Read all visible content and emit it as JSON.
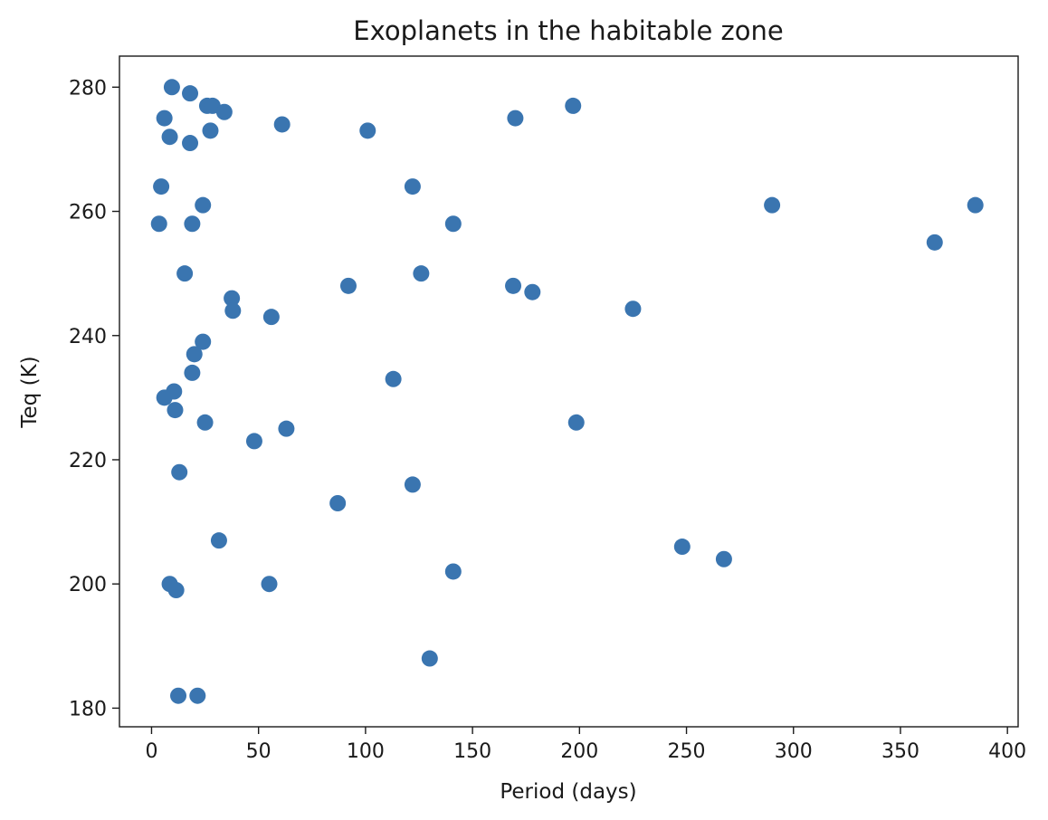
{
  "chart_data": {
    "type": "scatter",
    "title": "Exoplanets in the habitable zone",
    "xlabel": "Period (days)",
    "ylabel": "Teq (K)",
    "xlim": [
      -15,
      405
    ],
    "ylim": [
      177,
      285
    ],
    "xticks": [
      0,
      50,
      100,
      150,
      200,
      250,
      300,
      350,
      400
    ],
    "yticks": [
      180,
      200,
      220,
      240,
      260,
      280
    ],
    "marker_color": "#3a75b0",
    "grid": false,
    "legend": "none",
    "points": [
      {
        "x": 9.5,
        "y": 280
      },
      {
        "x": 18,
        "y": 279
      },
      {
        "x": 26,
        "y": 277
      },
      {
        "x": 28.5,
        "y": 277
      },
      {
        "x": 34,
        "y": 276
      },
      {
        "x": 6,
        "y": 275
      },
      {
        "x": 8.5,
        "y": 272
      },
      {
        "x": 18,
        "y": 271
      },
      {
        "x": 27.5,
        "y": 273
      },
      {
        "x": 61,
        "y": 274
      },
      {
        "x": 101,
        "y": 273
      },
      {
        "x": 170,
        "y": 275
      },
      {
        "x": 197,
        "y": 277
      },
      {
        "x": 4.5,
        "y": 264
      },
      {
        "x": 122,
        "y": 264
      },
      {
        "x": 3.5,
        "y": 258
      },
      {
        "x": 19,
        "y": 258
      },
      {
        "x": 24,
        "y": 261
      },
      {
        "x": 141,
        "y": 258
      },
      {
        "x": 290,
        "y": 261
      },
      {
        "x": 385,
        "y": 261
      },
      {
        "x": 366,
        "y": 255
      },
      {
        "x": 15.5,
        "y": 250
      },
      {
        "x": 126,
        "y": 250
      },
      {
        "x": 92,
        "y": 248
      },
      {
        "x": 169,
        "y": 248
      },
      {
        "x": 178,
        "y": 247
      },
      {
        "x": 37.5,
        "y": 246
      },
      {
        "x": 38,
        "y": 244
      },
      {
        "x": 56,
        "y": 243
      },
      {
        "x": 225,
        "y": 244.3
      },
      {
        "x": 24,
        "y": 239
      },
      {
        "x": 20,
        "y": 237
      },
      {
        "x": 19,
        "y": 234
      },
      {
        "x": 113,
        "y": 233
      },
      {
        "x": 6,
        "y": 230
      },
      {
        "x": 10.5,
        "y": 231
      },
      {
        "x": 11,
        "y": 228
      },
      {
        "x": 25,
        "y": 226
      },
      {
        "x": 63,
        "y": 225
      },
      {
        "x": 48,
        "y": 223
      },
      {
        "x": 198.5,
        "y": 226
      },
      {
        "x": 13,
        "y": 218
      },
      {
        "x": 122,
        "y": 216
      },
      {
        "x": 87,
        "y": 213
      },
      {
        "x": 31.5,
        "y": 207
      },
      {
        "x": 248,
        "y": 206
      },
      {
        "x": 267.5,
        "y": 204
      },
      {
        "x": 141,
        "y": 202
      },
      {
        "x": 8.5,
        "y": 200
      },
      {
        "x": 11.5,
        "y": 199
      },
      {
        "x": 55,
        "y": 200
      },
      {
        "x": 130,
        "y": 188
      },
      {
        "x": 12.5,
        "y": 182
      },
      {
        "x": 21.5,
        "y": 182
      }
    ]
  }
}
